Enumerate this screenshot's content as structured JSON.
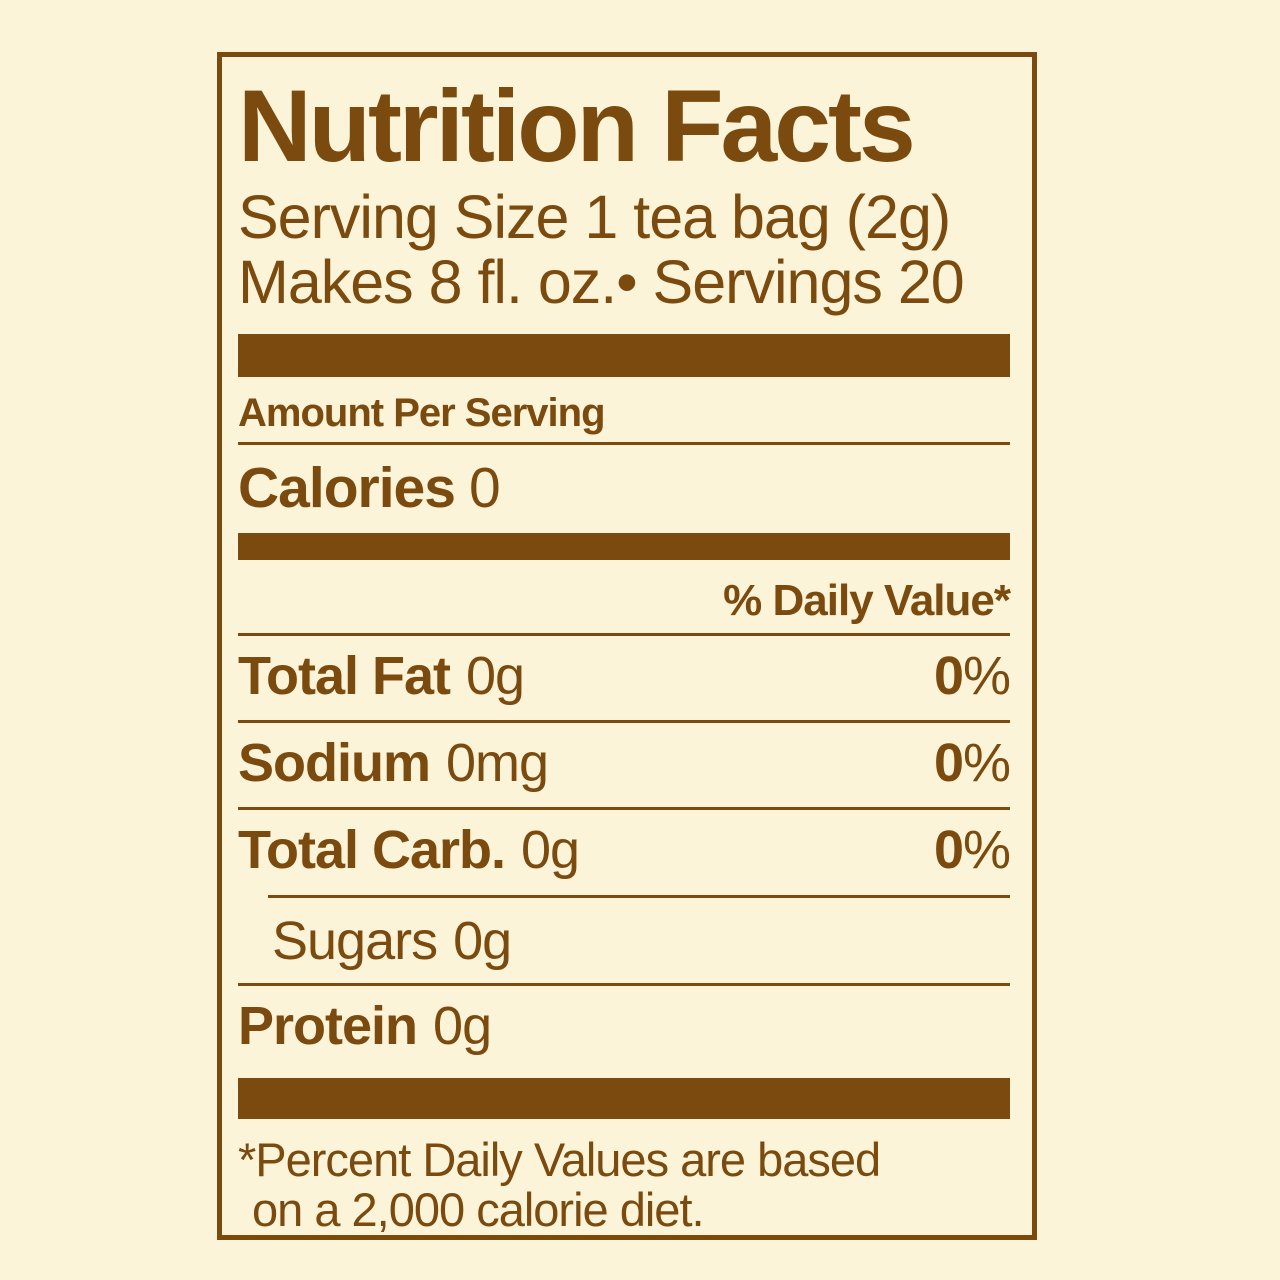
{
  "colors": {
    "text_brown": "#7B4A0E",
    "background_cream": "#FBF4D8"
  },
  "label": {
    "title": "Nutrition Facts",
    "serving_size_line": "Serving Size 1 tea bag (2g)",
    "servings_line": "Makes 8 fl. oz.• Servings 20",
    "amount_per_serving": "Amount Per Serving",
    "calories_label": "Calories",
    "calories_value": "0",
    "daily_value_header": "% Daily Value*",
    "rows": [
      {
        "name": "Total Fat",
        "amount": "0g",
        "dv_value": "0",
        "dv_sign": "%"
      },
      {
        "name": "Sodium",
        "amount": "0mg",
        "dv_value": "0",
        "dv_sign": "%"
      },
      {
        "name": "Total Carb.",
        "amount": "0g",
        "dv_value": "0",
        "dv_sign": "%"
      }
    ],
    "sub_rows": [
      {
        "name": "Sugars",
        "amount": "0g"
      }
    ],
    "protein_row": {
      "name": "Protein",
      "amount": "0g"
    },
    "footnote_line1": "*Percent Daily Values are based",
    "footnote_line2": "on a 2,000 calorie diet."
  }
}
